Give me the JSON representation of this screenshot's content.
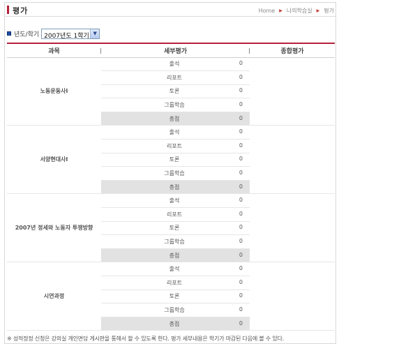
{
  "page": {
    "title": "평가",
    "breadcrumb": [
      "Home",
      "나의학습실",
      "평가"
    ]
  },
  "filter": {
    "label": "년도/학기",
    "selected": "2007년도 1학기"
  },
  "table": {
    "headers": [
      "과목",
      "세부평가",
      "종합평가"
    ],
    "subjects": [
      {
        "name": "노동운동사I",
        "items": [
          {
            "label": "출석",
            "score": "0"
          },
          {
            "label": "리포트",
            "score": "0"
          },
          {
            "label": "토론",
            "score": "0"
          },
          {
            "label": "그룹학습",
            "score": "0"
          },
          {
            "label": "총점",
            "score": "0"
          }
        ]
      },
      {
        "name": "서양현대사I",
        "items": [
          {
            "label": "출석",
            "score": "0"
          },
          {
            "label": "리포트",
            "score": "0"
          },
          {
            "label": "토론",
            "score": "0"
          },
          {
            "label": "그룹학습",
            "score": "0"
          },
          {
            "label": "총점",
            "score": "0"
          }
        ]
      },
      {
        "name": "2007년 정세와 노동자 투쟁방향",
        "items": [
          {
            "label": "출석",
            "score": "0"
          },
          {
            "label": "리포트",
            "score": "0"
          },
          {
            "label": "토론",
            "score": "0"
          },
          {
            "label": "그룹학습",
            "score": "0"
          },
          {
            "label": "총점",
            "score": "0"
          }
        ]
      },
      {
        "name": "시연과정",
        "items": [
          {
            "label": "출석",
            "score": "0"
          },
          {
            "label": "리포트",
            "score": "0"
          },
          {
            "label": "토론",
            "score": "0"
          },
          {
            "label": "그룹학습",
            "score": "0"
          },
          {
            "label": "총점",
            "score": "0"
          }
        ]
      }
    ]
  },
  "note": "※ 성적정정 신청은 강의실 개인면담 게시판을 통해서 할 수 있도록 한다. 평가 세부내용은 학기가 마감된 다음에 볼 수 있다.",
  "colors": {
    "accent": "#b5213a",
    "total_row_bg": "#e2e2e2"
  }
}
